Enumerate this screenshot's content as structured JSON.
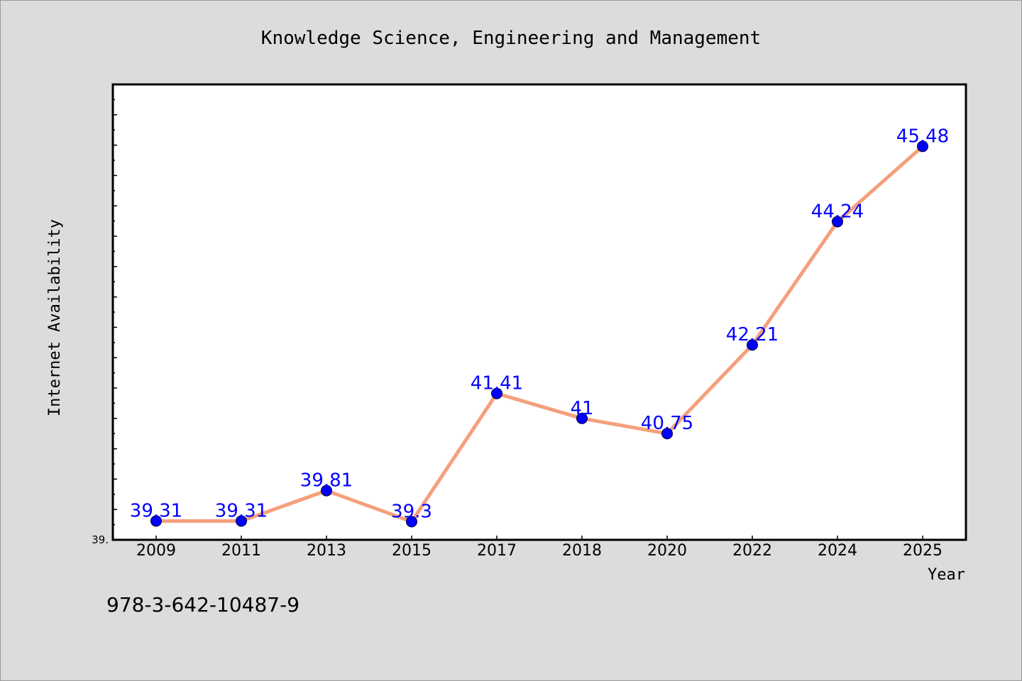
{
  "chart_data": {
    "type": "line",
    "title": "Knowledge Science, Engineering and Management",
    "xlabel": "Year",
    "ylabel": "Internet Availability",
    "categories": [
      "2009",
      "2011",
      "2013",
      "2015",
      "2017",
      "2018",
      "2020",
      "2022",
      "2024",
      "2025"
    ],
    "series": [
      {
        "values": [
          39.31,
          39.31,
          39.81,
          39.3,
          41.41,
          41,
          40.75,
          42.21,
          44.24,
          45.48
        ],
        "data_labels": [
          "39.31",
          "39.31",
          "39.81",
          "39.3",
          "41.41",
          "41",
          "40.75",
          "42.21",
          "44.24",
          "45.48"
        ]
      }
    ],
    "ylim": [
      39.0,
      46.5
    ],
    "y_tick_labels": [
      "39."
    ],
    "line_color": "#f4a07c",
    "marker_color": "#0000ff",
    "grid": false,
    "legend": "none"
  },
  "footer": {
    "isbn": "978-3-642-10487-9"
  },
  "colors": {
    "background": "#dcdcdc",
    "plot_background": "#ffffff"
  }
}
